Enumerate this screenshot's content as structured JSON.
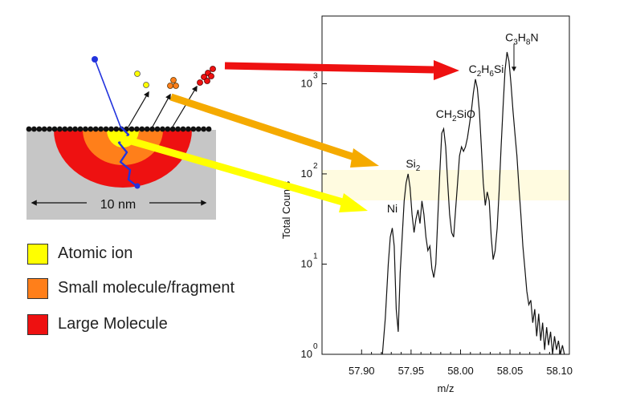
{
  "diagram": {
    "scale_label": "10 nm",
    "legend": [
      {
        "label": "Atomic ion",
        "color": "#ffff00"
      },
      {
        "label": "Small molecule/fragment",
        "color": "#ff7f1a"
      },
      {
        "label": "Large Molecule",
        "color": "#ee1111"
      }
    ],
    "colors": {
      "substrate": "#c6c6c6",
      "surface_atoms": "#111111",
      "primary_ion": "#2233dd",
      "arrow_red": "#ee1111",
      "arrow_orange": "#f5aa00",
      "arrow_yellow": "#ffff00"
    }
  },
  "chart_data": {
    "type": "line",
    "xlabel": "m/z",
    "ylabel": "Total Counts",
    "x_ticks": [
      "57.90",
      "57.95",
      "58.00",
      "58.05",
      "58.10"
    ],
    "y_ticks": [
      {
        "base": "10",
        "exp": "0"
      },
      {
        "base": "10",
        "exp": "1"
      },
      {
        "base": "10",
        "exp": "2"
      },
      {
        "base": "10",
        "exp": "3"
      }
    ],
    "xlim": [
      57.86,
      58.11
    ],
    "ylim_log10": [
      0,
      3.75
    ],
    "peak_labels": [
      {
        "main": "Ni",
        "sub": "",
        "tail": "",
        "x": 57.931,
        "y_log": 1.5
      },
      {
        "main": "Si",
        "sub": "2",
        "tail": "",
        "x": 57.952,
        "y_log": 2.0
      },
      {
        "main": "CH",
        "sub": "2",
        "tail": "SiO",
        "x": 57.995,
        "y_log": 2.55
      },
      {
        "main": "C",
        "sub": "2",
        "tail": "H",
        "sub2": "6",
        "tail2": "Si",
        "x": 58.026,
        "y_log": 3.05
      },
      {
        "main": "C",
        "sub": "3",
        "tail": "H",
        "sub2": "8",
        "tail2": "N",
        "x": 58.062,
        "y_log": 3.4
      }
    ],
    "series": [
      {
        "x": [
          57.921,
          57.924,
          57.927,
          57.929,
          57.931,
          57.933,
          57.935,
          57.937,
          57.939,
          57.941,
          57.943,
          57.945,
          57.947,
          57.949,
          57.951,
          57.953,
          57.955,
          57.957,
          57.959,
          57.961,
          57.963,
          57.965,
          57.967,
          57.969,
          57.971,
          57.973,
          57.975,
          57.977,
          57.979,
          57.981,
          57.983,
          57.985,
          57.987,
          57.989,
          57.991,
          57.993,
          57.995,
          57.997,
          57.999,
          58.001,
          58.003,
          58.005,
          58.007,
          58.009,
          58.011,
          58.013,
          58.015,
          58.017,
          58.019,
          58.021,
          58.023,
          58.025,
          58.027,
          58.029,
          58.031,
          58.033,
          58.035,
          58.037,
          58.039,
          58.041,
          58.043,
          58.045,
          58.047,
          58.049,
          58.051,
          58.053,
          58.055,
          58.057,
          58.059,
          58.061,
          58.063,
          58.065,
          58.067,
          58.069,
          58.071,
          58.073,
          58.075,
          58.077,
          58.079,
          58.081,
          58.083,
          58.085,
          58.087,
          58.089,
          58.091,
          58.093,
          58.095,
          58.097,
          58.099,
          58.101,
          58.103,
          58.105
        ],
        "y_log": [
          0.0,
          0.4,
          1.0,
          1.3,
          1.4,
          1.2,
          0.5,
          0.25,
          0.9,
          1.3,
          1.7,
          1.9,
          2.0,
          1.85,
          1.55,
          1.35,
          1.5,
          1.6,
          1.45,
          1.7,
          1.55,
          1.3,
          1.15,
          1.2,
          0.95,
          0.85,
          1.0,
          1.5,
          2.0,
          2.45,
          2.5,
          2.3,
          1.9,
          1.55,
          1.35,
          1.3,
          1.6,
          1.9,
          2.2,
          2.3,
          2.25,
          2.3,
          2.4,
          2.55,
          2.7,
          2.9,
          3.05,
          2.95,
          2.7,
          2.3,
          1.9,
          1.65,
          1.8,
          1.7,
          1.3,
          1.05,
          1.15,
          1.4,
          1.8,
          2.3,
          2.75,
          3.15,
          3.35,
          3.25,
          3.0,
          2.7,
          2.45,
          2.2,
          1.85,
          1.55,
          1.2,
          0.95,
          0.7,
          0.55,
          0.6,
          0.35,
          0.5,
          0.2,
          0.45,
          0.15,
          0.35,
          0.05,
          0.3,
          0.1,
          0.25,
          0.0,
          0.2,
          0.05,
          0.15,
          0.0,
          0.1,
          0.0
        ]
      }
    ]
  }
}
